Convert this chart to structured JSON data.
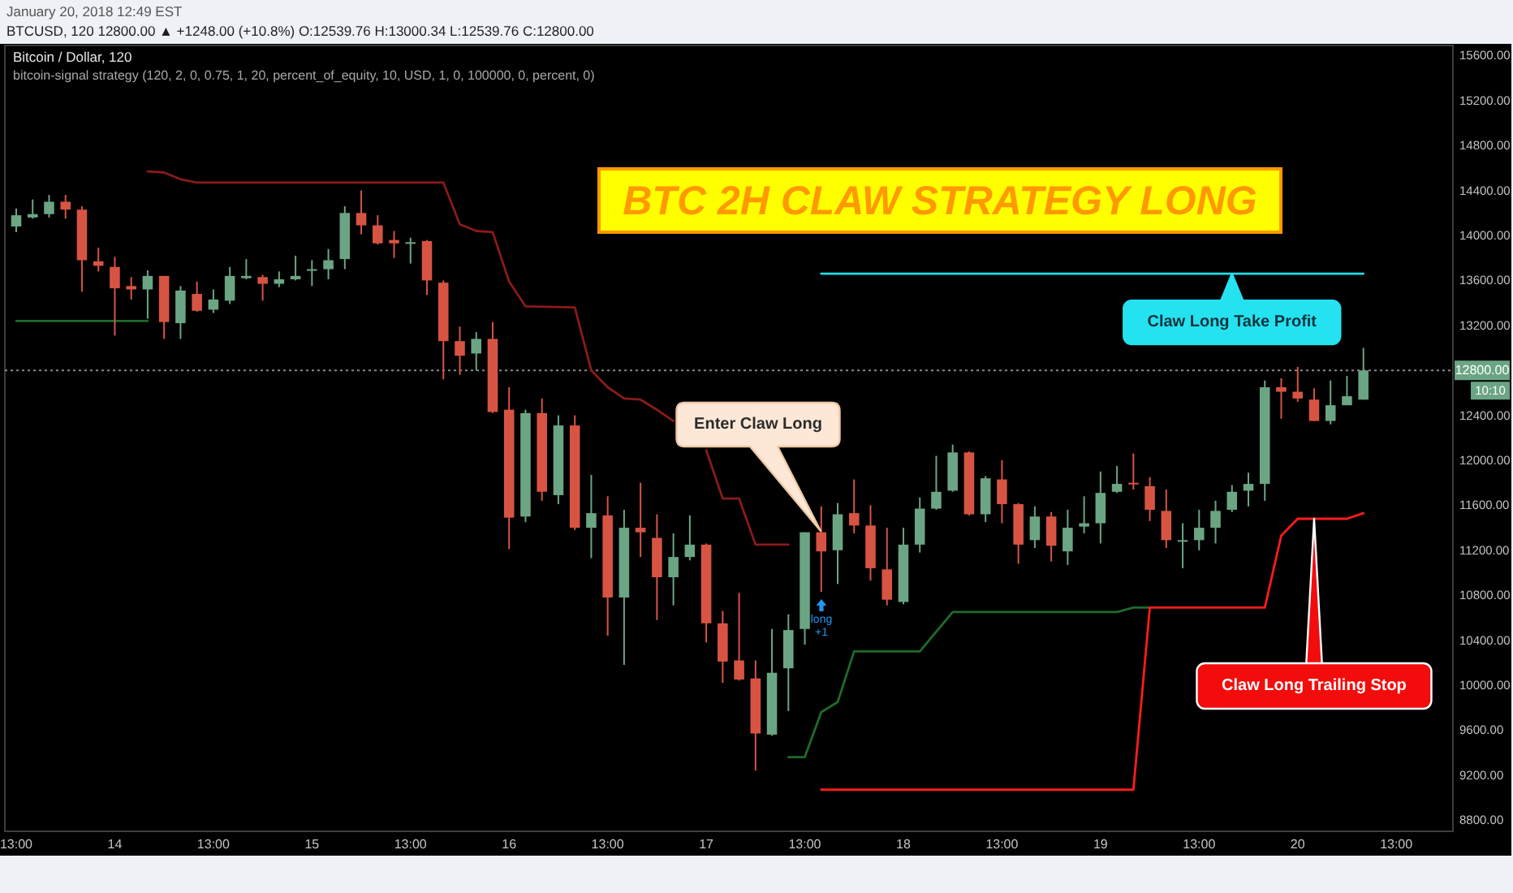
{
  "chart_data": {
    "type": "candlestick",
    "title": "BTC 2H CLAW STRATEGY LONG",
    "subtitle": "Bitcoin / Dollar, 120",
    "x": [
      "2018-01-13T13:00",
      "2018-01-13T15:00",
      "2018-01-13T17:00",
      "2018-01-13T19:00",
      "2018-01-13T21:00",
      "2018-01-13T23:00",
      "2018-01-14T01:00",
      "2018-01-14T03:00",
      "2018-01-14T05:00",
      "2018-01-14T07:00",
      "2018-01-14T09:00",
      "2018-01-14T11:00",
      "2018-01-14T13:00",
      "2018-01-14T15:00",
      "2018-01-14T17:00",
      "2018-01-14T19:00",
      "2018-01-14T21:00",
      "2018-01-14T23:00",
      "2018-01-15T01:00",
      "2018-01-15T03:00",
      "2018-01-15T05:00",
      "2018-01-15T07:00",
      "2018-01-15T09:00",
      "2018-01-15T11:00",
      "2018-01-15T13:00",
      "2018-01-15T15:00",
      "2018-01-15T17:00",
      "2018-01-15T19:00",
      "2018-01-15T21:00",
      "2018-01-15T23:00",
      "2018-01-16T01:00",
      "2018-01-16T03:00",
      "2018-01-16T05:00",
      "2018-01-16T07:00",
      "2018-01-16T09:00",
      "2018-01-16T11:00",
      "2018-01-16T13:00",
      "2018-01-16T15:00",
      "2018-01-16T17:00",
      "2018-01-16T19:00",
      "2018-01-16T21:00",
      "2018-01-16T23:00",
      "2018-01-17T01:00",
      "2018-01-17T03:00",
      "2018-01-17T05:00",
      "2018-01-17T07:00",
      "2018-01-17T09:00",
      "2018-01-17T11:00",
      "2018-01-17T13:00",
      "2018-01-17T15:00",
      "2018-01-17T17:00",
      "2018-01-17T19:00",
      "2018-01-17T21:00",
      "2018-01-17T23:00",
      "2018-01-18T01:00",
      "2018-01-18T03:00",
      "2018-01-18T05:00",
      "2018-01-18T07:00",
      "2018-01-18T09:00",
      "2018-01-18T11:00",
      "2018-01-18T13:00",
      "2018-01-18T15:00",
      "2018-01-18T17:00",
      "2018-01-18T19:00",
      "2018-01-18T21:00",
      "2018-01-18T23:00",
      "2018-01-19T01:00",
      "2018-01-19T03:00",
      "2018-01-19T05:00",
      "2018-01-19T07:00",
      "2018-01-19T09:00",
      "2018-01-19T11:00",
      "2018-01-19T13:00",
      "2018-01-19T15:00",
      "2018-01-19T17:00",
      "2018-01-19T19:00",
      "2018-01-19T21:00",
      "2018-01-19T23:00",
      "2018-01-20T01:00",
      "2018-01-20T03:00",
      "2018-01-20T05:00",
      "2018-01-20T07:00",
      "2018-01-20T09:00"
    ],
    "ohlc": [
      [
        14080,
        14240,
        14030,
        14180
      ],
      [
        14160,
        14320,
        14150,
        14190
      ],
      [
        14190,
        14360,
        14160,
        14300
      ],
      [
        14300,
        14360,
        14150,
        14230
      ],
      [
        14230,
        14260,
        13500,
        13780
      ],
      [
        13770,
        13890,
        13680,
        13730
      ],
      [
        13720,
        13810,
        13110,
        13530
      ],
      [
        13550,
        13630,
        13430,
        13520
      ],
      [
        13520,
        13690,
        13260,
        13640
      ],
      [
        13640,
        13640,
        13080,
        13230
      ],
      [
        13220,
        13550,
        13080,
        13510
      ],
      [
        13480,
        13590,
        13320,
        13330
      ],
      [
        13340,
        13520,
        13310,
        13430
      ],
      [
        13420,
        13720,
        13390,
        13640
      ],
      [
        13620,
        13790,
        13610,
        13640
      ],
      [
        13630,
        13650,
        13420,
        13570
      ],
      [
        13570,
        13680,
        13540,
        13610
      ],
      [
        13610,
        13820,
        13600,
        13640
      ],
      [
        13690,
        13780,
        13550,
        13700
      ],
      [
        13700,
        13880,
        13610,
        13780
      ],
      [
        13790,
        14260,
        13700,
        14200
      ],
      [
        14200,
        14400,
        14010,
        14090
      ],
      [
        14090,
        14180,
        13920,
        13930
      ],
      [
        13960,
        14040,
        13800,
        13930
      ],
      [
        13930,
        13980,
        13750,
        13940
      ],
      [
        13950,
        13960,
        13470,
        13600
      ],
      [
        13580,
        13600,
        12720,
        13060
      ],
      [
        13060,
        13190,
        12760,
        12930
      ],
      [
        12950,
        13140,
        12800,
        13080
      ],
      [
        13080,
        13230,
        12420,
        12430
      ],
      [
        12450,
        12650,
        11210,
        11490
      ],
      [
        11500,
        12450,
        11450,
        12420
      ],
      [
        12420,
        12550,
        11640,
        11720
      ],
      [
        11690,
        12400,
        11610,
        12310
      ],
      [
        12310,
        12400,
        11380,
        11400
      ],
      [
        11400,
        11870,
        11130,
        11530
      ],
      [
        11510,
        11680,
        10440,
        10780
      ],
      [
        10780,
        11560,
        10180,
        11400
      ],
      [
        11400,
        11800,
        11140,
        11360
      ],
      [
        11310,
        11520,
        10580,
        10960
      ],
      [
        10960,
        11350,
        10710,
        11140
      ],
      [
        11140,
        11510,
        11110,
        11250
      ],
      [
        11250,
        11260,
        10380,
        10550
      ],
      [
        10550,
        10660,
        10020,
        10210
      ],
      [
        10220,
        10820,
        10040,
        10050
      ],
      [
        10060,
        10220,
        9240,
        9570
      ],
      [
        9560,
        10500,
        9550,
        10110
      ],
      [
        10150,
        10630,
        9770,
        10490
      ],
      [
        10500,
        11360,
        10360,
        11360
      ],
      [
        11360,
        11590,
        10830,
        11190
      ],
      [
        11200,
        11620,
        10900,
        11520
      ],
      [
        11530,
        11830,
        11350,
        11420
      ],
      [
        11420,
        11600,
        10930,
        11040
      ],
      [
        11030,
        11400,
        10710,
        10760
      ],
      [
        10740,
        11400,
        10720,
        11250
      ],
      [
        11250,
        11670,
        11180,
        11570
      ],
      [
        11570,
        12040,
        11560,
        11720
      ],
      [
        11730,
        12140,
        11720,
        12070
      ],
      [
        12070,
        12080,
        11510,
        11520
      ],
      [
        11520,
        11860,
        11450,
        11840
      ],
      [
        11830,
        12000,
        11440,
        11610
      ],
      [
        11610,
        11620,
        11080,
        11250
      ],
      [
        11290,
        11590,
        11220,
        11500
      ],
      [
        11500,
        11540,
        11100,
        11240
      ],
      [
        11190,
        11560,
        11070,
        11400
      ],
      [
        11410,
        11680,
        11350,
        11440
      ],
      [
        11440,
        11900,
        11260,
        11710
      ],
      [
        11720,
        11950,
        11710,
        11790
      ],
      [
        11800,
        12060,
        11740,
        11790
      ],
      [
        11770,
        11850,
        11460,
        11560
      ],
      [
        11550,
        11740,
        11220,
        11290
      ],
      [
        11280,
        11440,
        11040,
        11290
      ],
      [
        11290,
        11560,
        11200,
        11400
      ],
      [
        11400,
        11640,
        11260,
        11550
      ],
      [
        11560,
        11780,
        11540,
        11720
      ],
      [
        11730,
        11890,
        11590,
        11790
      ],
      [
        11790,
        12710,
        11640,
        12650
      ],
      [
        12650,
        12730,
        12370,
        12610
      ],
      [
        12610,
        12830,
        12520,
        12550
      ],
      [
        12540,
        12640,
        12350,
        12350
      ],
      [
        12350,
        12710,
        12320,
        12490
      ],
      [
        12490,
        12750,
        12490,
        12570
      ],
      [
        12539.76,
        13000.34,
        12539.76,
        12800
      ]
    ],
    "series": [
      {
        "type": "line",
        "color": "#8b1a1a",
        "x": [
          "2018-01-14T05:00",
          "2018-01-14T07:00",
          "2018-01-14T09:00",
          "2018-01-14T11:00",
          "2018-01-15T17:00",
          "2018-01-15T19:00",
          "2018-01-15T21:00",
          "2018-01-15T23:00",
          "2018-01-16T01:00",
          "2018-01-16T03:00",
          "2018-01-16T09:00",
          "2018-01-16T11:00",
          "2018-01-16T13:00",
          "2018-01-16T15:00",
          "2018-01-16T17:00",
          "2018-01-16T19:00",
          "2018-01-16T21:00",
          "2018-01-16T23:00",
          "2018-01-17T01:00",
          "2018-01-17T03:00",
          "2018-01-17T05:00",
          "2018-01-17T07:00",
          "2018-01-17T11:00"
        ],
        "values": [
          14570,
          14560,
          14500,
          14470,
          14470,
          14100,
          14040,
          14030,
          13590,
          13370,
          13360,
          12800,
          12650,
          12550,
          12540,
          12450,
          12350,
          null,
          12090,
          11660,
          11660,
          11250,
          11250
        ]
      },
      {
        "type": "line",
        "color": "#1e6b2a",
        "x": [
          "2018-01-13T13:00",
          "2018-01-14T05:00",
          "2018-01-14T07:00",
          "2018-01-17T11:00",
          "2018-01-17T13:00",
          "2018-01-17T15:00",
          "2018-01-17T17:00",
          "2018-01-17T19:00",
          "2018-01-18T03:00",
          "2018-01-18T07:00",
          "2018-01-19T03:00",
          "2018-01-19T05:00",
          "2018-01-19T07:00"
        ],
        "values": [
          13240,
          13240,
          null,
          9360,
          9360,
          9760,
          9850,
          10300,
          10300,
          10650,
          10650,
          10690,
          10690
        ]
      },
      {
        "type": "line",
        "color": "#ff1c1c",
        "x": [
          "2018-01-17T15:00",
          "2018-01-19T05:00",
          "2018-01-19T07:00",
          "2018-01-19T21:00",
          "2018-01-19T23:00",
          "2018-01-20T01:00",
          "2018-01-20T07:00",
          "2018-01-20T09:00"
        ],
        "values": [
          9070,
          9070,
          10690,
          10690,
          11330,
          11480,
          11480,
          11530
        ]
      },
      {
        "type": "line",
        "color": "#22dbe8",
        "x": [
          "2018-01-17T15:00",
          "2018-01-20T09:00"
        ],
        "values": [
          13660,
          13660
        ]
      }
    ],
    "xlim": [
      "2018-01-13T11:37",
      "2018-01-20T19:54"
    ],
    "xticks": [
      {
        "value": "2018-01-13T13:00",
        "label": "13:00"
      },
      {
        "value": "2018-01-14T01:00",
        "label": "14"
      },
      {
        "value": "2018-01-14T13:00",
        "label": "13:00"
      },
      {
        "value": "2018-01-15T01:00",
        "label": "15"
      },
      {
        "value": "2018-01-15T13:00",
        "label": "13:00"
      },
      {
        "value": "2018-01-16T01:00",
        "label": "16"
      },
      {
        "value": "2018-01-16T13:00",
        "label": "13:00"
      },
      {
        "value": "2018-01-17T01:00",
        "label": "17"
      },
      {
        "value": "2018-01-17T13:00",
        "label": "13:00"
      },
      {
        "value": "2018-01-18T01:00",
        "label": "18"
      },
      {
        "value": "2018-01-18T13:00",
        "label": "13:00"
      },
      {
        "value": "2018-01-19T01:00",
        "label": "19"
      },
      {
        "value": "2018-01-19T13:00",
        "label": "13:00"
      },
      {
        "value": "2018-01-20T01:00",
        "label": "20"
      },
      {
        "value": "2018-01-20T13:00",
        "label": "13:00"
      }
    ],
    "ylim": [
      8700,
      15690
    ],
    "yticks": [
      {
        "value": 8800,
        "label": "8800.00"
      },
      {
        "value": 9200,
        "label": "9200.00"
      },
      {
        "value": 9600,
        "label": "9600.00"
      },
      {
        "value": 10000,
        "label": "10000.00"
      },
      {
        "value": 10400,
        "label": "10400.00"
      },
      {
        "value": 10800,
        "label": "10800.00"
      },
      {
        "value": 11200,
        "label": "11200.00"
      },
      {
        "value": 11600,
        "label": "11600.00"
      },
      {
        "value": 12000,
        "label": "12000.00"
      },
      {
        "value": 12400,
        "label": "12400.00"
      },
      {
        "value": 13200,
        "label": "13200.00"
      },
      {
        "value": 13600,
        "label": "13600.00"
      },
      {
        "value": 14000,
        "label": "14000.00"
      },
      {
        "value": 14400,
        "label": "14400.00"
      },
      {
        "value": 14800,
        "label": "14800.00"
      },
      {
        "value": 15200,
        "label": "15200.00"
      },
      {
        "value": 15600,
        "label": "15600.00"
      }
    ],
    "ref_lines": [
      {
        "axis": "y",
        "value": 12800,
        "label": "12800.00",
        "color": "#8a8a8a",
        "line_style": "dotted"
      }
    ],
    "annotations": [
      "January 20, 2018 12:49 EST",
      "BTCUSD, 120 12800.00 ▲ +1248.00 (+10.8%) O:12539.76 H:13000.34 L:12539.76 C:12800.00",
      "bitcoin-signal strategy (120, 2, 0, 0.75, 1, 20, percent_of_equity, 10, USD, 1, 0, 100000, 0, percent, 0)",
      "Enter Claw Long",
      "long",
      "+1",
      {
        "text": "Claw Long Take Profit",
        "x": "2018-01-19T17:00",
        "y": 13660
      },
      {
        "text": "Claw Long Trailing Stop",
        "x": "2018-01-20T03:00",
        "y": 11480
      },
      "10:10"
    ]
  }
}
